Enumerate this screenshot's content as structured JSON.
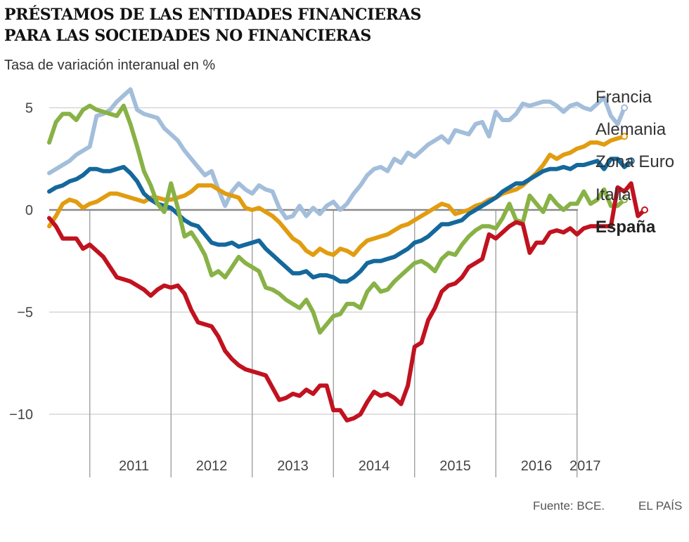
{
  "header": {
    "title_line1": "PRÉSTAMOS DE LAS ENTIDADES FINANCIERAS",
    "title_line2": "PARA LAS SOCIEDADES NO FINANCIERAS",
    "subtitle": "Tasa de variación interanual en %"
  },
  "footer": {
    "source": "Fuente: BCE.",
    "credit": "EL PAÍS"
  },
  "chart_data": {
    "type": "line",
    "title": "PRÉSTAMOS DE LAS ENTIDADES FINANCIERAS PARA LAS SOCIEDADES NO FINANCIERAS",
    "ylabel": "Tasa de variación interanual en %",
    "ylim": [
      -12,
      6
    ],
    "yticks": [
      5,
      0,
      -5,
      -10
    ],
    "ytick_labels": [
      "5",
      "0",
      "−5",
      "−10"
    ],
    "x_start": 2010.5,
    "x_step": 0.0833333,
    "xlim": [
      2010.5,
      2017.2
    ],
    "year_labels": [
      "2011",
      "2012",
      "2013",
      "2014",
      "2015",
      "2016",
      "2017"
    ],
    "series": [
      {
        "name": "Francia",
        "color": "#a3bedb",
        "bold": false,
        "values": [
          1.8,
          2.0,
          2.2,
          2.4,
          2.7,
          2.9,
          3.1,
          4.6,
          4.7,
          4.9,
          5.3,
          5.6,
          5.9,
          4.9,
          4.7,
          4.6,
          4.5,
          4.0,
          3.7,
          3.4,
          2.9,
          2.5,
          2.1,
          1.7,
          1.9,
          1.0,
          0.2,
          0.9,
          1.3,
          1.0,
          0.8,
          1.2,
          1.0,
          0.9,
          0.1,
          -0.4,
          -0.3,
          0.2,
          -0.3,
          0.1,
          -0.2,
          0.2,
          0.4,
          0.0,
          0.3,
          0.8,
          1.2,
          1.7,
          2.0,
          2.1,
          1.9,
          2.5,
          2.3,
          2.8,
          2.6,
          2.9,
          3.2,
          3.4,
          3.6,
          3.3,
          3.9,
          3.8,
          3.7,
          4.2,
          4.3,
          3.6,
          4.8,
          4.4,
          4.4,
          4.7,
          5.2,
          5.1,
          5.2,
          5.3,
          5.3,
          5.1,
          4.8,
          5.1,
          5.2,
          5.0,
          4.9,
          5.2,
          5.5,
          4.6,
          4.2,
          5.0
        ]
      },
      {
        "name": "Alemania",
        "color": "#e19c10",
        "bold": false,
        "values": [
          -0.8,
          -0.3,
          0.3,
          0.5,
          0.4,
          0.1,
          0.3,
          0.4,
          0.6,
          0.8,
          0.8,
          0.7,
          0.6,
          0.5,
          0.4,
          0.6,
          0.6,
          0.5,
          0.5,
          0.6,
          0.7,
          0.9,
          1.2,
          1.2,
          1.2,
          1.0,
          0.8,
          0.7,
          0.6,
          0.1,
          0.0,
          0.1,
          -0.1,
          -0.3,
          -0.6,
          -1.0,
          -1.4,
          -1.6,
          -2.0,
          -2.2,
          -1.9,
          -2.1,
          -2.2,
          -1.9,
          -2.0,
          -2.2,
          -1.8,
          -1.5,
          -1.4,
          -1.3,
          -1.2,
          -1.0,
          -0.8,
          -0.7,
          -0.5,
          -0.3,
          -0.1,
          0.1,
          0.3,
          0.2,
          -0.2,
          -0.1,
          0.0,
          0.2,
          0.3,
          0.5,
          0.6,
          0.8,
          0.9,
          1.0,
          1.2,
          1.5,
          1.8,
          2.2,
          2.7,
          2.5,
          2.7,
          2.8,
          3.0,
          3.1,
          3.3,
          3.3,
          3.2,
          3.4,
          3.5,
          3.6
        ]
      },
      {
        "name": "Zona Euro",
        "color": "#14689c",
        "bold": false,
        "values": [
          0.9,
          1.1,
          1.2,
          1.4,
          1.5,
          1.7,
          2.0,
          2.0,
          1.9,
          1.9,
          2.0,
          2.1,
          1.8,
          1.4,
          0.8,
          0.5,
          0.3,
          0.2,
          0.1,
          -0.2,
          -0.5,
          -0.7,
          -0.8,
          -1.2,
          -1.6,
          -1.7,
          -1.7,
          -1.6,
          -1.8,
          -1.7,
          -1.6,
          -1.5,
          -1.9,
          -2.2,
          -2.5,
          -2.8,
          -3.1,
          -3.1,
          -3.0,
          -3.3,
          -3.2,
          -3.2,
          -3.3,
          -3.5,
          -3.5,
          -3.3,
          -3.0,
          -2.6,
          -2.5,
          -2.5,
          -2.4,
          -2.3,
          -2.1,
          -1.9,
          -1.6,
          -1.5,
          -1.3,
          -1.0,
          -0.7,
          -0.7,
          -0.6,
          -0.5,
          -0.2,
          0.0,
          0.2,
          0.4,
          0.6,
          0.9,
          1.1,
          1.3,
          1.3,
          1.5,
          1.7,
          1.9,
          2.0,
          2.0,
          2.1,
          2.0,
          2.2,
          2.2,
          2.3,
          2.4,
          2.0,
          2.5,
          2.5,
          2.1,
          2.4
        ]
      },
      {
        "name": "Italia",
        "color": "#88b246",
        "bold": false,
        "values": [
          3.3,
          4.3,
          4.7,
          4.7,
          4.4,
          4.9,
          5.1,
          4.9,
          4.8,
          4.7,
          4.6,
          5.1,
          4.2,
          3.1,
          1.9,
          1.2,
          0.3,
          -0.1,
          1.3,
          0.1,
          -1.3,
          -1.1,
          -1.6,
          -2.2,
          -3.2,
          -3.0,
          -3.3,
          -2.8,
          -2.3,
          -2.6,
          -2.8,
          -3.0,
          -3.8,
          -3.9,
          -4.1,
          -4.4,
          -4.6,
          -4.8,
          -4.4,
          -5.0,
          -6.0,
          -5.6,
          -5.2,
          -5.1,
          -4.6,
          -4.6,
          -4.8,
          -4.0,
          -3.6,
          -4.0,
          -3.9,
          -3.5,
          -3.2,
          -2.9,
          -2.6,
          -2.5,
          -2.7,
          -3.0,
          -2.4,
          -2.1,
          -2.2,
          -1.7,
          -1.3,
          -1.0,
          -0.8,
          -0.8,
          -0.9,
          -0.4,
          0.3,
          -0.5,
          -0.6,
          0.7,
          0.3,
          -0.1,
          0.7,
          0.3,
          0.0,
          0.3,
          0.3,
          0.9,
          0.3,
          0.5,
          1.0,
          0.2,
          0.2,
          0.5
        ]
      },
      {
        "name": "España",
        "color": "#c1121f",
        "bold": true,
        "values": [
          -0.4,
          -0.8,
          -1.4,
          -1.4,
          -1.4,
          -1.9,
          -1.7,
          -2.0,
          -2.3,
          -2.8,
          -3.3,
          -3.4,
          -3.5,
          -3.7,
          -3.9,
          -4.2,
          -3.9,
          -3.7,
          -3.8,
          -3.7,
          -4.1,
          -4.9,
          -5.5,
          -5.6,
          -5.7,
          -6.2,
          -6.9,
          -7.3,
          -7.6,
          -7.8,
          -7.9,
          -8.0,
          -8.1,
          -8.7,
          -9.3,
          -9.2,
          -9.0,
          -9.1,
          -8.8,
          -9.0,
          -8.6,
          -8.6,
          -9.8,
          -9.8,
          -10.3,
          -10.2,
          -10.0,
          -9.4,
          -8.9,
          -9.1,
          -9.0,
          -9.2,
          -9.5,
          -8.6,
          -6.7,
          -6.5,
          -5.4,
          -4.8,
          -4.0,
          -3.7,
          -3.6,
          -3.3,
          -2.8,
          -2.6,
          -2.4,
          -1.2,
          -1.4,
          -1.1,
          -0.8,
          -0.6,
          -0.7,
          -2.1,
          -1.6,
          -1.6,
          -1.1,
          -1.0,
          -1.1,
          -0.9,
          -1.2,
          -0.9,
          -0.8,
          -0.8,
          -0.8,
          -0.8,
          1.1,
          0.9,
          1.3,
          -0.3,
          0.0
        ]
      }
    ]
  }
}
